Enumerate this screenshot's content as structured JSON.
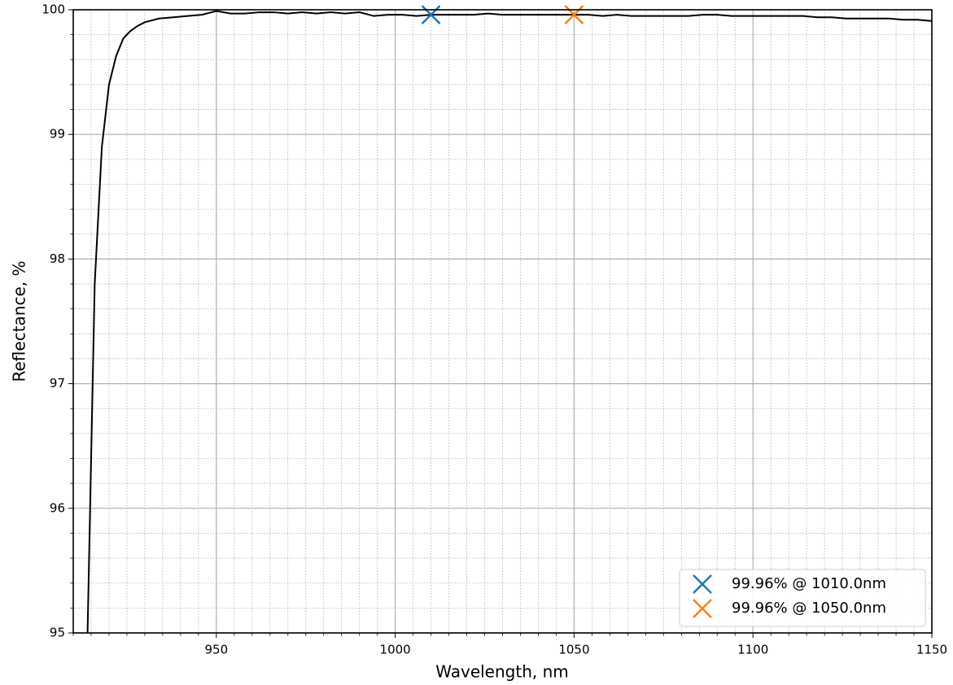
{
  "chart_data": {
    "type": "line",
    "xlabel": "Wavelength, nm",
    "ylabel": "Reflectance, %",
    "xlim": [
      910,
      1150
    ],
    "ylim": [
      95,
      100
    ],
    "xticks": [
      950,
      1000,
      1050,
      1100,
      1150
    ],
    "yticks": [
      95,
      96,
      97,
      98,
      99,
      100
    ],
    "xminorticks": [
      910,
      915,
      920,
      925,
      930,
      935,
      940,
      945,
      955,
      960,
      965,
      970,
      975,
      980,
      985,
      990,
      995,
      1005,
      1010,
      1015,
      1020,
      1025,
      1030,
      1035,
      1040,
      1045,
      1055,
      1060,
      1065,
      1070,
      1075,
      1080,
      1085,
      1090,
      1095,
      1105,
      1110,
      1115,
      1120,
      1125,
      1130,
      1135,
      1140,
      1145
    ],
    "yminorticks": [
      95.2,
      95.4,
      95.6,
      95.8,
      96.2,
      96.4,
      96.6,
      96.8,
      97.2,
      97.4,
      97.6,
      97.8,
      98.2,
      98.4,
      98.6,
      98.8,
      99.2,
      99.4,
      99.6,
      99.8
    ],
    "grid": true,
    "minor_grid": true,
    "legend": "lower right",
    "series": [
      {
        "type": "line",
        "color": "#000000",
        "x": [
          914,
          916,
          918,
          920,
          922,
          924,
          926,
          928,
          930,
          934,
          938,
          942,
          946,
          950,
          954,
          958,
          962,
          966,
          970,
          974,
          978,
          982,
          986,
          990,
          994,
          998,
          1002,
          1006,
          1010,
          1014,
          1018,
          1022,
          1026,
          1030,
          1034,
          1038,
          1042,
          1046,
          1050,
          1054,
          1058,
          1062,
          1066,
          1070,
          1074,
          1078,
          1082,
          1086,
          1090,
          1094,
          1098,
          1102,
          1106,
          1110,
          1114,
          1118,
          1122,
          1126,
          1130,
          1134,
          1138,
          1142,
          1146,
          1150
        ],
        "values": [
          95.0,
          97.8,
          98.9,
          99.4,
          99.63,
          99.77,
          99.83,
          99.87,
          99.9,
          99.93,
          99.94,
          99.95,
          99.96,
          99.99,
          99.97,
          99.97,
          99.98,
          99.98,
          99.97,
          99.98,
          99.97,
          99.98,
          99.97,
          99.98,
          99.95,
          99.96,
          99.96,
          99.95,
          99.96,
          99.96,
          99.96,
          99.96,
          99.97,
          99.96,
          99.96,
          99.96,
          99.96,
          99.96,
          99.96,
          99.96,
          99.95,
          99.96,
          99.95,
          99.95,
          99.95,
          99.95,
          99.95,
          99.96,
          99.96,
          99.95,
          99.95,
          99.95,
          99.95,
          99.95,
          99.95,
          99.94,
          99.94,
          99.93,
          99.93,
          99.93,
          99.93,
          99.92,
          99.92,
          99.91
        ]
      },
      {
        "type": "scatter",
        "name": "99.96% @ 1010.0nm",
        "color": "#1f77b4",
        "marker": "x",
        "x": [
          1010
        ],
        "values": [
          99.96
        ]
      },
      {
        "type": "scatter",
        "name": "99.96% @ 1050.0nm",
        "color": "#ff7f0e",
        "marker": "x",
        "x": [
          1050
        ],
        "values": [
          99.96
        ]
      }
    ]
  }
}
